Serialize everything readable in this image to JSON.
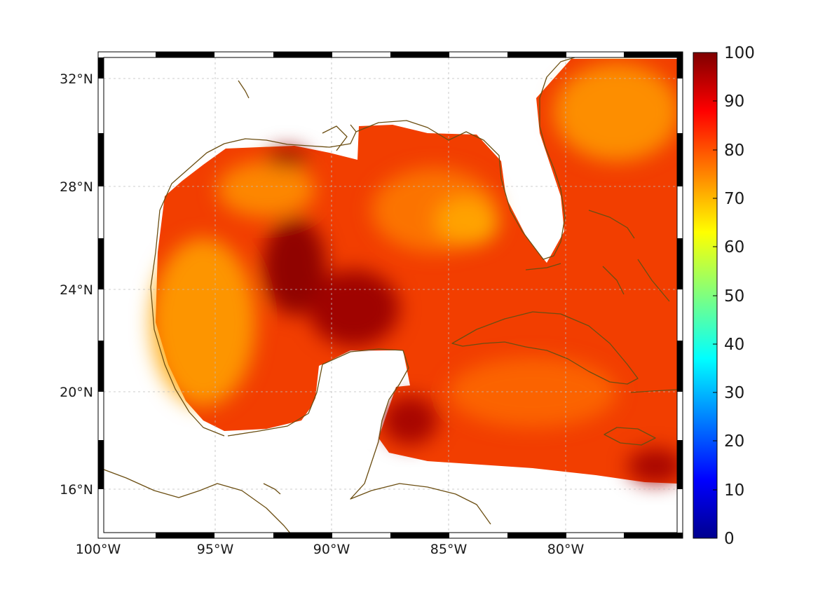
{
  "map": {
    "x_ticks": [
      "100°W",
      "95°W",
      "90°W",
      "85°W",
      "80°W"
    ],
    "y_ticks": [
      "32°N",
      "28°N",
      "24°N",
      "20°N",
      "16°N"
    ],
    "lon_range": [
      -100,
      -75
    ],
    "lat_range": [
      14.3,
      33
    ],
    "coast_color": "#6b4e12",
    "grid": true
  },
  "colorbar": {
    "ticks": [
      "100",
      "90",
      "80",
      "70",
      "60",
      "50",
      "40",
      "30",
      "20",
      "10",
      "0"
    ],
    "range": [
      0,
      100
    ],
    "colormap": "jet",
    "stops": [
      "#7f0000",
      "#ff0000",
      "#ff8000",
      "#ffff00",
      "#80ff80",
      "#00ffff",
      "#0080ff",
      "#0000ff",
      "#00008f"
    ]
  }
}
